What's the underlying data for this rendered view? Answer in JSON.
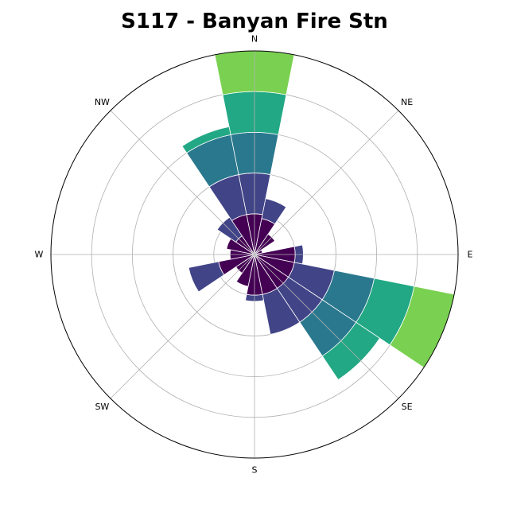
{
  "chart_data": {
    "type": "polar-bar",
    "title": "S117 - Banyan Fire Stn",
    "direction_labels": [
      "N",
      "NE",
      "E",
      "SE",
      "S",
      "SW",
      "W",
      "NW"
    ],
    "direction_angles_deg": [
      0,
      45,
      90,
      135,
      180,
      225,
      270,
      315
    ],
    "sector_count": 16,
    "sector_directions_deg": [
      0,
      22.5,
      45,
      67.5,
      90,
      112.5,
      135,
      157.5,
      180,
      202.5,
      225,
      247.5,
      270,
      292.5,
      315,
      337.5
    ],
    "radial_grid": [
      1,
      2,
      3,
      4,
      5
    ],
    "radial_max": 5,
    "grid": true,
    "bin_colors": [
      "#440154",
      "#414487",
      "#2a788e",
      "#22a884",
      "#7ad151"
    ],
    "stacks": [
      [
        1.0,
        2.0,
        3.0,
        4.0,
        5.0
      ],
      [
        0.9,
        1.4
      ],
      [
        0.6
      ],
      [
        0.2
      ],
      [
        1.0,
        1.2
      ],
      [
        1.0,
        2.0,
        3.0,
        4.0,
        5.0
      ],
      [
        1.0,
        2.0,
        3.0,
        3.7
      ],
      [
        1.0,
        2.0
      ],
      [
        1.0,
        1.15
      ],
      [
        0.8
      ],
      [
        0.55
      ],
      [
        0.9,
        1.65
      ],
      [
        0.6
      ],
      [
        0.7
      ],
      [
        0.55,
        1.1
      ],
      [
        1.0,
        2.0,
        3.0,
        3.2
      ]
    ]
  }
}
